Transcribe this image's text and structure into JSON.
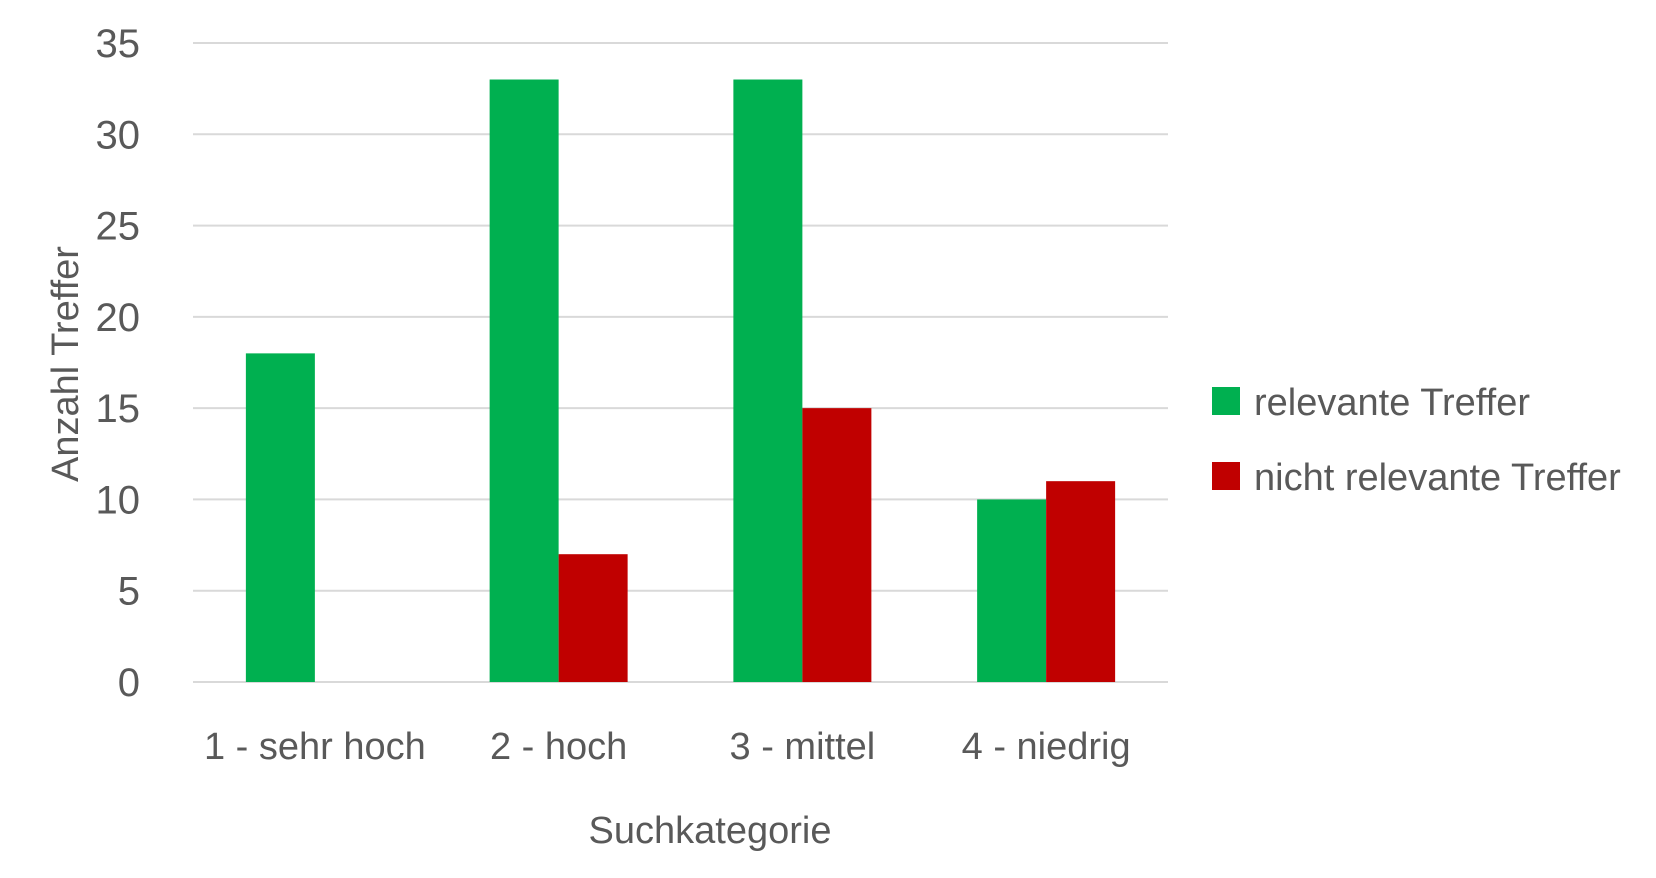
{
  "chart_data": {
    "type": "bar",
    "title": "",
    "xlabel": "Suchkategorie",
    "ylabel": "Anzahl Treffer",
    "categories": [
      "1 - sehr hoch",
      "2 - hoch",
      "3 - mittel",
      "4 - niedrig"
    ],
    "series": [
      {
        "name": "relevante Treffer",
        "color": "#00b050",
        "values": [
          18,
          33,
          33,
          10
        ]
      },
      {
        "name": "nicht relevante Treffer",
        "color": "#c00000",
        "values": [
          0,
          7,
          15,
          11
        ]
      }
    ],
    "ylim": [
      0,
      35
    ],
    "yticks": [
      0,
      5,
      10,
      15,
      20,
      25,
      30,
      35
    ],
    "grid": true,
    "legend_position": "right"
  }
}
